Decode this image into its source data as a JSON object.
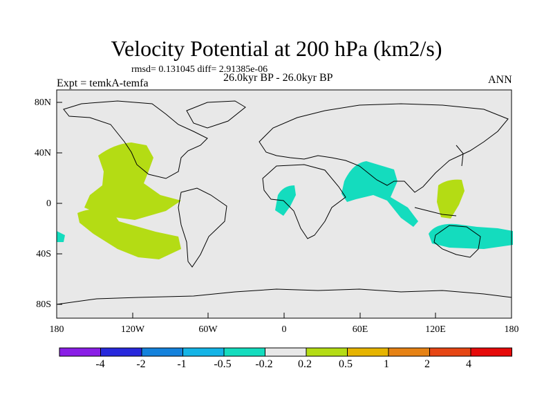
{
  "title": "Velocity Potential at 200 hPa (km2/s)",
  "stats": "rmsd= 0.131045 diff= 2.91385e-06",
  "experiment": "Expt = temkA-temfa",
  "period": "26.0kyr BP - 26.0kyr BP",
  "season": "ANN",
  "lat_labels": [
    "80N",
    "40N",
    "0",
    "40S",
    "80S"
  ],
  "lon_labels": [
    "180",
    "120W",
    "60W",
    "0",
    "60E",
    "120E",
    "180"
  ],
  "colorbar": {
    "labels": [
      "-4",
      "-2",
      "-1",
      "-0.5",
      "-0.2",
      "0.2",
      "0.5",
      "1",
      "2",
      "4"
    ],
    "colors": [
      "#8a1ee6",
      "#2828dc",
      "#1482dc",
      "#14b4e6",
      "#14dcbe",
      "#e8e8e8",
      "#b4dc14",
      "#e6b400",
      "#e68214",
      "#e64614",
      "#e60a0a"
    ]
  },
  "colors": {
    "land_background": "#e8e8e8",
    "positive_anomaly": "#b4dc14",
    "negative_anomaly": "#14dcbe"
  }
}
